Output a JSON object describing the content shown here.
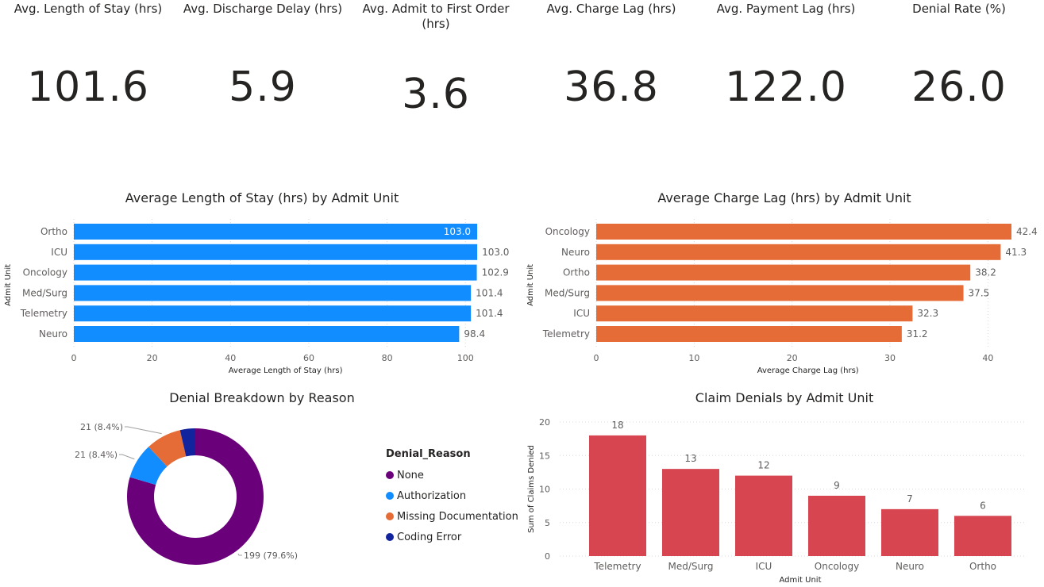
{
  "kpis": [
    {
      "label": "Avg. Length of Stay (hrs)",
      "value": "101.6"
    },
    {
      "label": "Avg. Discharge Delay (hrs)",
      "value": "5.9"
    },
    {
      "label": "Avg. Admit to First Order (hrs)",
      "value": "3.6"
    },
    {
      "label": "Avg. Charge Lag (hrs)",
      "value": "36.8"
    },
    {
      "label": "Avg. Payment Lag (hrs)",
      "value": "122.0"
    },
    {
      "label": "Denial Rate (%)",
      "value": "26.0"
    }
  ],
  "chart_data": [
    {
      "type": "bar",
      "orientation": "horizontal",
      "title": "Average Length of Stay (hrs) by Admit Unit",
      "xlabel": "Average Length of Stay (hrs)",
      "ylabel": "Admit Unit",
      "categories": [
        "Ortho",
        "ICU",
        "Oncology",
        "Med/Surg",
        "Telemetry",
        "Neuro"
      ],
      "values": [
        103.0,
        103.0,
        102.9,
        101.4,
        101.4,
        98.4
      ],
      "value_labels": [
        "103.0",
        "103.0",
        "102.9",
        "101.4",
        "101.4",
        "98.4"
      ],
      "xticks": [
        0,
        20,
        40,
        60,
        80,
        100
      ],
      "xlim": [
        0,
        104
      ],
      "color": "#118DFF",
      "grid": true
    },
    {
      "type": "bar",
      "orientation": "horizontal",
      "title": "Average Charge Lag (hrs) by Admit Unit",
      "xlabel": "Average Charge Lag (hrs)",
      "ylabel": "Admit Unit",
      "categories": [
        "Oncology",
        "Neuro",
        "Ortho",
        "Med/Surg",
        "ICU",
        "Telemetry"
      ],
      "values": [
        42.4,
        41.3,
        38.2,
        37.5,
        32.3,
        31.2
      ],
      "value_labels": [
        "42.4",
        "41.3",
        "38.2",
        "37.5",
        "32.3",
        "31.2"
      ],
      "xticks": [
        0,
        10,
        20,
        30,
        40
      ],
      "xlim": [
        0,
        42.4
      ],
      "color": "#E66C37",
      "grid": true
    },
    {
      "type": "pie",
      "variant": "donut",
      "title": "Denial Breakdown by Reason",
      "legend_title": "Denial_Reason",
      "legend_position": "right",
      "slices": [
        {
          "name": "None",
          "value": 199,
          "label": "199 (79.6%)",
          "color": "#6B007B"
        },
        {
          "name": "Authorization",
          "value": 21,
          "label": "21 (8.4%)",
          "color": "#118DFF"
        },
        {
          "name": "Missing Documentation",
          "value": 21,
          "label": "21 (8.4%)",
          "color": "#E66C37"
        },
        {
          "name": "Coding Error",
          "value": 9,
          "label": "",
          "color": "#12239E"
        }
      ]
    },
    {
      "type": "bar",
      "orientation": "vertical",
      "title": "Claim Denials by Admit Unit",
      "xlabel": "Admit Unit",
      "ylabel": "Sum of Claims Denied",
      "categories": [
        "Telemetry",
        "Med/Surg",
        "ICU",
        "Oncology",
        "Neuro",
        "Ortho"
      ],
      "values": [
        18,
        13,
        12,
        9,
        7,
        6
      ],
      "yticks": [
        0,
        5,
        10,
        15,
        20
      ],
      "ylim": [
        0,
        20
      ],
      "color": "#D64550",
      "grid": true
    }
  ]
}
